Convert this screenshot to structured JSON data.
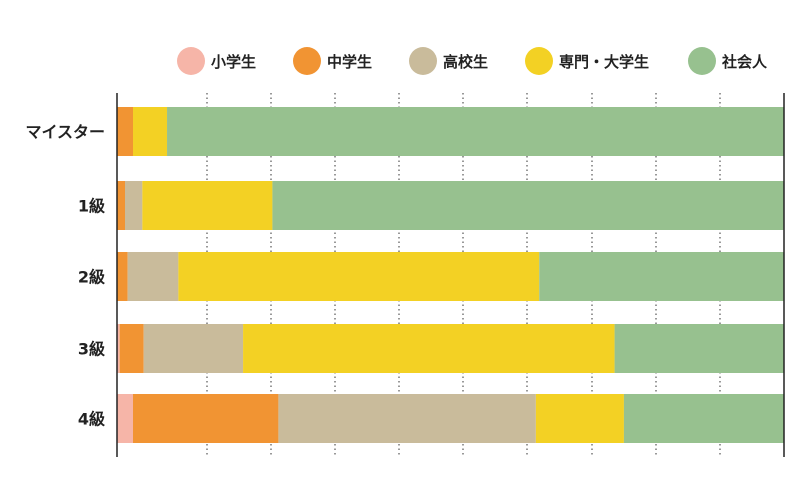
{
  "chart_data": {
    "type": "bar",
    "orientation": "horizontal",
    "stacked": true,
    "normalized": true,
    "categories": [
      "マイスター",
      "1級",
      "2級",
      "3級",
      "4級"
    ],
    "series": [
      {
        "name": "小学生",
        "color": "#f6b5a8",
        "values": [
          0,
          0,
          0,
          0.4,
          2.4
        ]
      },
      {
        "name": "中学生",
        "color": "#f19433",
        "values": [
          2.4,
          1.2,
          1.6,
          3.6,
          21.8
        ]
      },
      {
        "name": "高校生",
        "color": "#c9bb9b",
        "values": [
          0,
          2.6,
          7.6,
          14.9,
          38.6
        ]
      },
      {
        "name": "専門・大学生",
        "color": "#f3d124",
        "values": [
          5.1,
          19.5,
          54.1,
          55.7,
          13.2
        ]
      },
      {
        "name": "社会人",
        "color": "#97c18f",
        "values": [
          92.5,
          76.7,
          36.7,
          25.4,
          24.0
        ]
      }
    ],
    "xlim": [
      0,
      100
    ],
    "grid": "vertical-dotted",
    "legend_position": "top-right",
    "title": "",
    "xlabel": "",
    "ylabel": ""
  }
}
